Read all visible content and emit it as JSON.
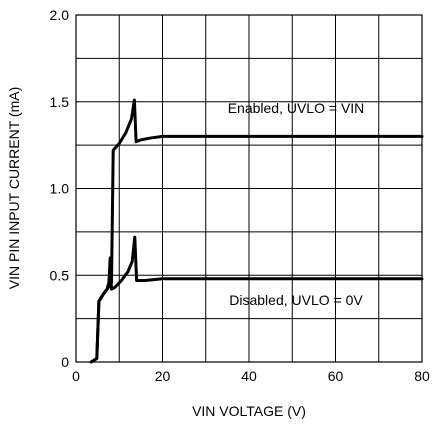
{
  "chart_data": {
    "type": "line",
    "xlabel": "VIN VOLTAGE (V)",
    "ylabel": "VIN PIN INPUT CURRENT (mA)",
    "xlim": [
      0,
      80
    ],
    "ylim": [
      0,
      2.0
    ],
    "x_ticks": [
      0,
      10,
      20,
      30,
      40,
      50,
      60,
      70,
      80
    ],
    "x_tick_labels": [
      "0",
      "",
      "20",
      "",
      "40",
      "",
      "60",
      "",
      "80"
    ],
    "y_ticks": [
      0,
      0.25,
      0.5,
      0.75,
      1.0,
      1.25,
      1.5,
      1.75,
      2.0
    ],
    "y_tick_labels": [
      "0",
      "",
      "0.5",
      "",
      "1.0",
      "",
      "1.5",
      "",
      "2.0"
    ],
    "grid": true,
    "annotations": [
      {
        "text": "Enabled, UVLO = VIN",
        "x": 51,
        "y": 1.42
      },
      {
        "text": "Disabled, UVLO = 0V",
        "x": 51,
        "y": 0.35
      }
    ],
    "series": [
      {
        "points": [
          [
            3.5,
            0
          ],
          [
            4.8,
            0.02
          ],
          [
            5.3,
            0.35
          ],
          [
            6.3,
            0.39
          ],
          [
            7.2,
            0.42
          ],
          [
            7.8,
            0.44
          ],
          [
            8.2,
            0.46
          ],
          [
            8.6,
            1.22
          ],
          [
            10,
            1.26
          ],
          [
            11.5,
            1.32
          ],
          [
            12.8,
            1.4
          ],
          [
            13.5,
            1.51
          ],
          [
            13.9,
            1.27
          ],
          [
            15,
            1.28
          ],
          [
            17,
            1.29
          ],
          [
            20,
            1.3
          ],
          [
            40,
            1.3
          ],
          [
            60,
            1.3
          ],
          [
            80,
            1.3
          ]
        ],
        "color": "#000000"
      },
      {
        "points": [
          [
            3.5,
            0
          ],
          [
            4.8,
            0.02
          ],
          [
            5.3,
            0.35
          ],
          [
            6.3,
            0.39
          ],
          [
            7.2,
            0.42
          ],
          [
            7.6,
            0.46
          ],
          [
            7.9,
            0.6
          ],
          [
            8.2,
            0.42
          ],
          [
            9,
            0.43
          ],
          [
            10.5,
            0.47
          ],
          [
            12,
            0.52
          ],
          [
            13,
            0.58
          ],
          [
            13.6,
            0.72
          ],
          [
            14,
            0.47
          ],
          [
            16,
            0.47
          ],
          [
            20,
            0.48
          ],
          [
            40,
            0.48
          ],
          [
            60,
            0.48
          ],
          [
            80,
            0.48
          ]
        ],
        "color": "#000000"
      }
    ]
  }
}
